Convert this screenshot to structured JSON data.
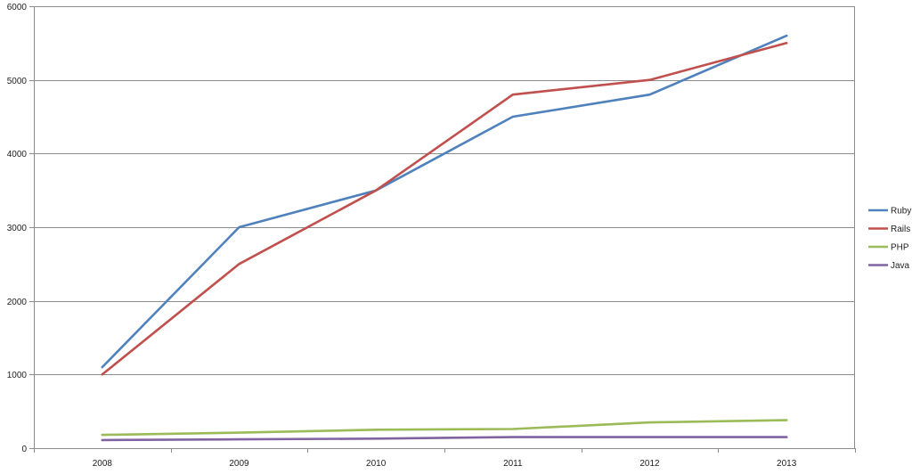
{
  "chart_data": {
    "type": "line",
    "title": "",
    "xlabel": "",
    "ylabel": "",
    "categories": [
      "2008",
      "2009",
      "2010",
      "2011",
      "2012",
      "2013"
    ],
    "ylim": [
      0,
      6000
    ],
    "yticks": [
      "0",
      "1000",
      "2000",
      "3000",
      "4000",
      "5000",
      "6000"
    ],
    "grid": true,
    "legend_position": "right",
    "series": [
      {
        "name": "Ruby",
        "color": "#4f81bd",
        "values": [
          1100,
          3000,
          3500,
          4500,
          4800,
          5600
        ]
      },
      {
        "name": "Rails",
        "color": "#c0504d",
        "values": [
          1000,
          2500,
          3500,
          4800,
          5000,
          5500
        ]
      },
      {
        "name": "PHP",
        "color": "#9bbb59",
        "values": [
          180,
          210,
          250,
          260,
          350,
          380
        ]
      },
      {
        "name": "Java",
        "color": "#8064a2",
        "values": [
          110,
          120,
          130,
          150,
          150,
          150
        ]
      }
    ]
  }
}
